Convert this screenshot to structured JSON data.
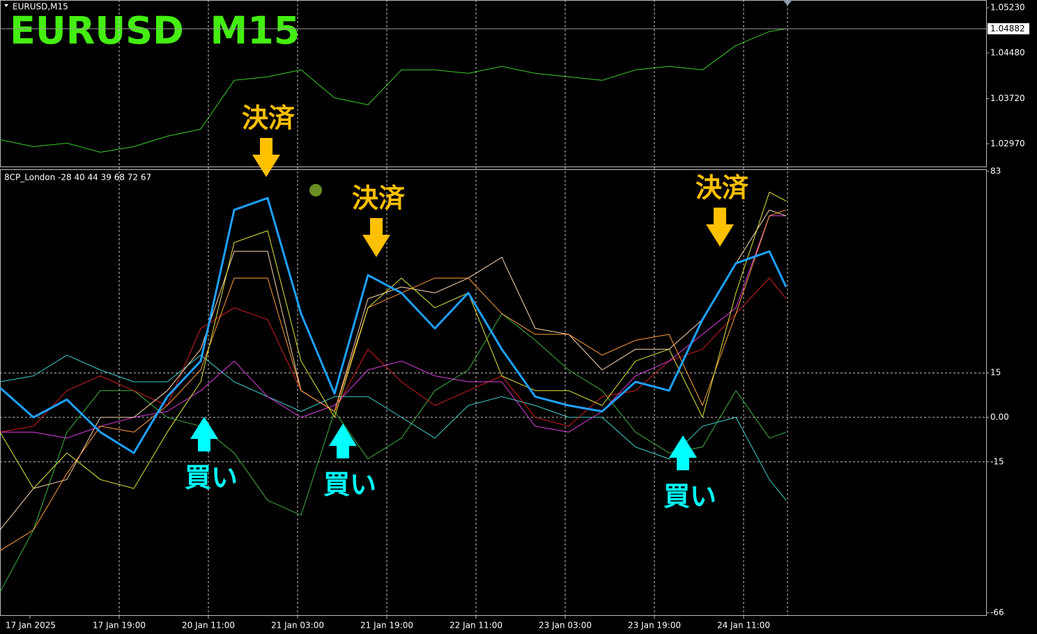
{
  "symbol_label": "EURUSD,M15",
  "chart_data": [
    {
      "type": "line",
      "title": "EURUSD  M15",
      "color": "#3ccc2c",
      "x": [
        0,
        24,
        48,
        72,
        96,
        120,
        144,
        168,
        192,
        216,
        240,
        264,
        288,
        312,
        336,
        360,
        384,
        408,
        432,
        456,
        480,
        504,
        528,
        552,
        564
      ],
      "xlim": [
        0,
        707.5
      ],
      "ylim": [
        1.0258,
        1.0536
      ],
      "yticks": [
        {
          "value": 1.0523,
          "label": "1.05230"
        },
        {
          "value": 1.0448,
          "label": "1.04480"
        },
        {
          "value": 1.0372,
          "label": "1.03720"
        },
        {
          "value": 1.0297,
          "label": "1.02970"
        }
      ],
      "last_price": {
        "value": 1.04882,
        "label": "1.04882"
      },
      "values": [
        1.03038,
        1.02922,
        1.0298,
        1.02829,
        1.02922,
        1.03096,
        1.03212,
        1.04024,
        1.04082,
        1.04198,
        1.03734,
        1.03618,
        1.04198,
        1.04198,
        1.0414,
        1.04256,
        1.0414,
        1.04082,
        1.04024,
        1.04198,
        1.04256,
        1.04198,
        1.04604,
        1.04836,
        1.04882
      ]
    },
    {
      "type": "line",
      "indicator_label": "8CP_London -28 40 44 39 68 72 67",
      "x": [
        0,
        24,
        48,
        72,
        96,
        120,
        144,
        168,
        192,
        216,
        240,
        264,
        288,
        312,
        336,
        360,
        384,
        408,
        432,
        456,
        480,
        504,
        528,
        552,
        564
      ],
      "xlim": [
        0,
        707.5
      ],
      "ylim": [
        -67,
        83
      ],
      "yticks": [
        83,
        15,
        {
          "value": 0,
          "label": "0.00"
        },
        -15,
        -66
      ],
      "xticks": [
        {
          "value": 21.5,
          "label": "17 Jan 2025"
        },
        {
          "value": 85.5,
          "label": "17 Jan 19:00"
        },
        {
          "value": 149.5,
          "label": "20 Jan 11:00"
        },
        {
          "value": 213.5,
          "label": "21 Jan 03:00"
        },
        {
          "value": 277.5,
          "label": "21 Jan 19:00"
        },
        {
          "value": 341.5,
          "label": "22 Jan 11:00"
        },
        {
          "value": 405.5,
          "label": "23 Jan 03:00"
        },
        {
          "value": 469.5,
          "label": "23 Jan 19:00"
        },
        {
          "value": 533.5,
          "label": "24 Jan 11:00"
        }
      ],
      "annotations": [
        "決済",
        "決済",
        "決済",
        "買い",
        "買い",
        "買い"
      ],
      "series": [
        {
          "color": "#40b040",
          "values": [
            -59,
            -38,
            -5,
            9,
            9,
            0,
            -3,
            -12,
            -28,
            -33,
            2,
            -14,
            -7,
            9,
            16,
            35,
            26,
            16,
            9,
            -5,
            -12,
            -10,
            9,
            -7,
            -5
          ]
        },
        {
          "color": "#40d0d0",
          "values": [
            12,
            14,
            21,
            16,
            12,
            12,
            21,
            12,
            7,
            2,
            7,
            7,
            0,
            -7,
            4,
            7,
            4,
            0,
            0,
            -10,
            -14,
            -3,
            0,
            -21,
            -28
          ]
        },
        {
          "color": "#d42020",
          "values": [
            -5,
            -3,
            9,
            14,
            9,
            4,
            30,
            37,
            33,
            9,
            2,
            23,
            12,
            4,
            9,
            14,
            0,
            -3,
            7,
            9,
            19,
            23,
            35,
            47,
            40
          ]
        },
        {
          "color": "#e040e0",
          "values": [
            -5,
            -5,
            -7,
            -3,
            0,
            2,
            9,
            19,
            7,
            0,
            4,
            16,
            19,
            14,
            12,
            12,
            -3,
            -5,
            2,
            14,
            19,
            28,
            37,
            68,
            68
          ]
        },
        {
          "color": "#ffd8b0",
          "values": [
            -38,
            -24,
            -21,
            0,
            0,
            9,
            23,
            56,
            56,
            9,
            2,
            40,
            44,
            42,
            47,
            54,
            30,
            28,
            16,
            23,
            23,
            33,
            52,
            70,
            68
          ]
        },
        {
          "color": "#ff9f40",
          "values": [
            -45,
            -38,
            -19,
            -3,
            -5,
            4,
            16,
            47,
            47,
            9,
            2,
            37,
            42,
            47,
            47,
            35,
            28,
            28,
            21,
            26,
            28,
            4,
            35,
            68,
            70
          ]
        },
        {
          "color": "#e6e640",
          "values": [
            -5,
            -24,
            -12,
            -21,
            -24,
            -5,
            12,
            59,
            63,
            19,
            0,
            37,
            47,
            37,
            42,
            14,
            9,
            9,
            4,
            19,
            23,
            0,
            42,
            76,
            73
          ]
        },
        {
          "color": "#1ea0ff",
          "width": 3,
          "values": [
            10,
            0,
            6,
            -5,
            -12,
            7,
            19,
            70,
            74,
            35,
            8,
            48,
            42,
            30,
            42,
            23,
            7,
            4,
            2,
            12,
            9,
            33,
            52,
            56,
            44
          ]
        }
      ]
    }
  ]
}
